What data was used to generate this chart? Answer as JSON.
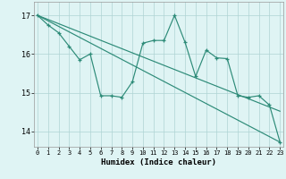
{
  "xlabel": "Humidex (Indice chaleur)",
  "x": [
    0,
    1,
    2,
    3,
    4,
    5,
    6,
    7,
    8,
    9,
    10,
    11,
    12,
    13,
    14,
    15,
    16,
    17,
    18,
    19,
    20,
    21,
    22,
    23
  ],
  "line1": [
    17.0,
    16.75,
    16.55,
    16.2,
    15.85,
    16.0,
    14.92,
    14.92,
    14.88,
    15.28,
    16.28,
    16.35,
    16.35,
    17.0,
    16.3,
    15.42,
    16.1,
    15.9,
    15.88,
    14.92,
    14.88,
    14.92,
    14.68,
    13.72
  ],
  "trend_upper_start": 17.0,
  "trend_upper_end": 14.52,
  "trend_lower_start": 17.0,
  "trend_lower_end": 13.72,
  "line_color": "#2d8b78",
  "bg_color": "#dff4f4",
  "grid_color": "#afd4d4",
  "ylim_min": 13.6,
  "ylim_max": 17.35,
  "yticks": [
    14,
    15,
    16,
    17
  ],
  "x_min": -0.3,
  "x_max": 23.3
}
